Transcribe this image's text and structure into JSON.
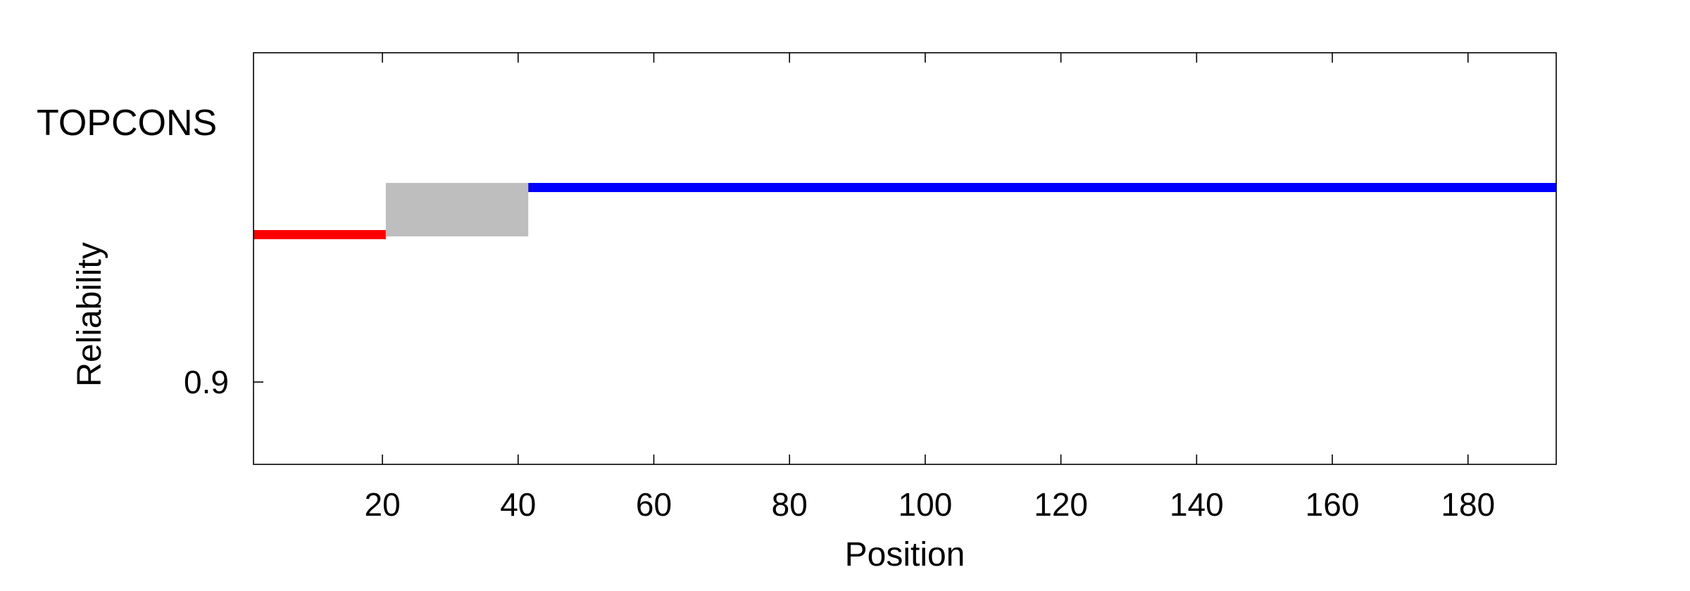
{
  "chart_data": {
    "type": "line",
    "title": "",
    "xlabel": "Position",
    "ylabel": "Reliability",
    "track_label": "TOPCONS",
    "xlim": [
      1,
      193
    ],
    "ylim": [
      0.84,
      1.14
    ],
    "x_ticks": [
      20,
      40,
      60,
      80,
      100,
      120,
      140,
      160,
      180
    ],
    "x_tick_labels": [
      "20",
      "40",
      "60",
      "80",
      "100",
      "120",
      "140",
      "160",
      "180"
    ],
    "y_ticks": [
      0.9
    ],
    "y_tick_labels": [
      "0.9"
    ],
    "grid": false,
    "legend": "none",
    "topology": [
      {
        "type": "inside",
        "start": 1,
        "end": 20.5,
        "color": "#ff0000"
      },
      {
        "type": "membrane",
        "start": 20.5,
        "end": 41.5,
        "color": "#bebebe"
      },
      {
        "type": "outside",
        "start": 41.5,
        "end": 193,
        "color": "#0000ff"
      }
    ]
  }
}
